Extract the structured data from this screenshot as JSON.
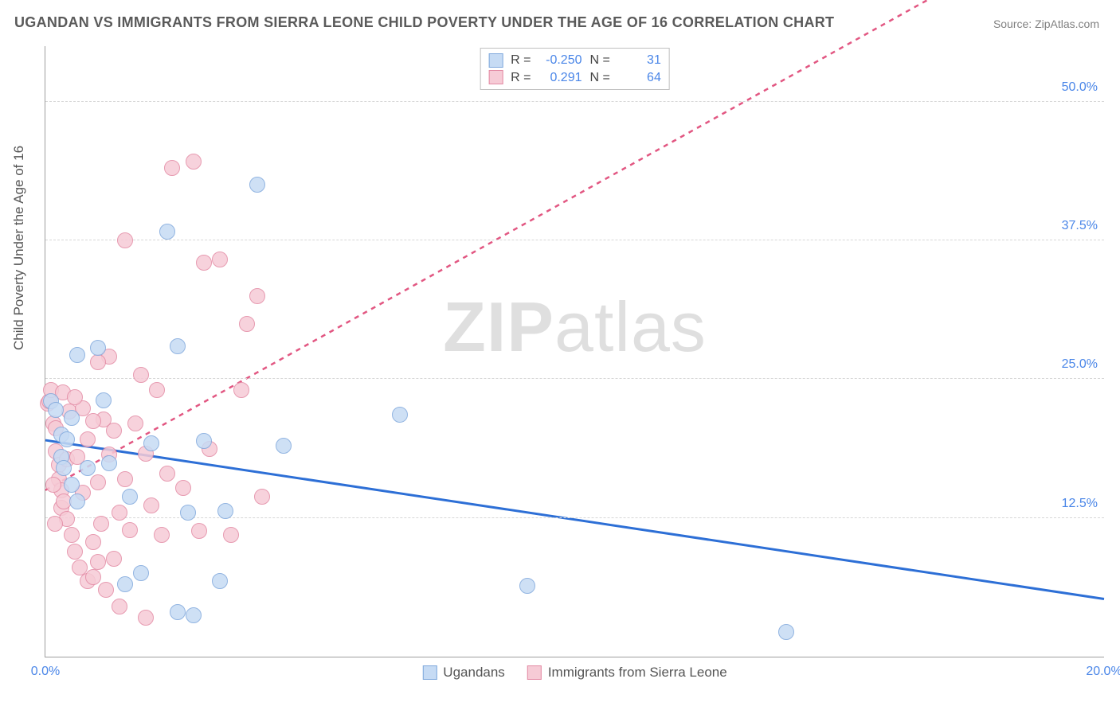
{
  "title": "UGANDAN VS IMMIGRANTS FROM SIERRA LEONE CHILD POVERTY UNDER THE AGE OF 16 CORRELATION CHART",
  "source": "Source: ZipAtlas.com",
  "watermark_left": "ZIP",
  "watermark_right": "atlas",
  "ylabel": "Child Poverty Under the Age of 16",
  "chart": {
    "type": "scatter",
    "xlim": [
      0,
      20
    ],
    "ylim": [
      0,
      55
    ],
    "x_ticks": [
      0,
      20
    ],
    "x_tick_labels": [
      "0.0%",
      "20.0%"
    ],
    "y_ticks": [
      12.5,
      25.0,
      37.5,
      50.0
    ],
    "y_tick_labels": [
      "12.5%",
      "25.0%",
      "37.5%",
      "50.0%"
    ],
    "grid_color": "#d7d7d7",
    "axis_color": "#9e9e9e",
    "background_color": "#ffffff",
    "marker_radius": 10,
    "series": [
      {
        "name": "Ugandans",
        "fill": "#c6dbf4",
        "stroke": "#7fa8dc",
        "trend_color": "#2d6fd6",
        "trend_width": 3,
        "trend_dash": "none",
        "trend": {
          "x1": 0,
          "y1": 19.5,
          "x2": 20,
          "y2": 5.2
        },
        "R": "-0.250",
        "N": "31",
        "points": [
          [
            0.1,
            23.0
          ],
          [
            0.2,
            22.2
          ],
          [
            0.3,
            20.0
          ],
          [
            0.3,
            18.0
          ],
          [
            0.35,
            17.0
          ],
          [
            0.4,
            19.6
          ],
          [
            0.5,
            21.5
          ],
          [
            0.5,
            15.5
          ],
          [
            0.6,
            14.0
          ],
          [
            0.6,
            27.2
          ],
          [
            0.8,
            17.0
          ],
          [
            1.0,
            27.8
          ],
          [
            1.1,
            23.1
          ],
          [
            1.2,
            17.4
          ],
          [
            1.5,
            6.5
          ],
          [
            1.6,
            14.4
          ],
          [
            1.8,
            7.5
          ],
          [
            2.0,
            19.2
          ],
          [
            2.3,
            38.3
          ],
          [
            2.5,
            28.0
          ],
          [
            2.5,
            4.0
          ],
          [
            2.7,
            13.0
          ],
          [
            3.0,
            19.4
          ],
          [
            3.3,
            6.8
          ],
          [
            3.4,
            13.1
          ],
          [
            4.0,
            42.5
          ],
          [
            4.5,
            19.0
          ],
          [
            6.7,
            21.8
          ],
          [
            9.1,
            6.4
          ],
          [
            14.0,
            2.2
          ],
          [
            2.8,
            3.7
          ]
        ]
      },
      {
        "name": "Immigrants from Sierra Leone",
        "fill": "#f6cbd6",
        "stroke": "#e38aa4",
        "trend_color": "#e25782",
        "trend_width": 2.5,
        "trend_dash": "6 6",
        "trend": {
          "x1": 0,
          "y1": 15.0,
          "x2": 20,
          "y2": 68.0
        },
        "R": "0.291",
        "N": "64",
        "points": [
          [
            0.05,
            22.8
          ],
          [
            0.08,
            23.0
          ],
          [
            0.1,
            24.0
          ],
          [
            0.15,
            21.0
          ],
          [
            0.2,
            18.5
          ],
          [
            0.2,
            20.6
          ],
          [
            0.25,
            17.3
          ],
          [
            0.25,
            16.0
          ],
          [
            0.3,
            15.0
          ],
          [
            0.3,
            13.4
          ],
          [
            0.35,
            14.0
          ],
          [
            0.4,
            12.4
          ],
          [
            0.4,
            17.8
          ],
          [
            0.45,
            22.1
          ],
          [
            0.5,
            11.0
          ],
          [
            0.55,
            9.5
          ],
          [
            0.6,
            18.0
          ],
          [
            0.65,
            8.0
          ],
          [
            0.7,
            22.4
          ],
          [
            0.7,
            14.8
          ],
          [
            0.8,
            6.8
          ],
          [
            0.8,
            19.6
          ],
          [
            0.9,
            7.2
          ],
          [
            0.9,
            10.3
          ],
          [
            1.0,
            15.7
          ],
          [
            1.0,
            8.5
          ],
          [
            1.05,
            12.0
          ],
          [
            1.1,
            21.4
          ],
          [
            1.15,
            6.0
          ],
          [
            1.2,
            18.2
          ],
          [
            1.2,
            27.0
          ],
          [
            1.3,
            20.4
          ],
          [
            1.4,
            13.0
          ],
          [
            1.4,
            4.5
          ],
          [
            1.5,
            37.5
          ],
          [
            1.5,
            16.0
          ],
          [
            1.6,
            11.4
          ],
          [
            1.7,
            21.0
          ],
          [
            1.8,
            25.4
          ],
          [
            1.9,
            18.3
          ],
          [
            1.9,
            3.5
          ],
          [
            2.0,
            13.6
          ],
          [
            2.1,
            24.0
          ],
          [
            2.2,
            11.0
          ],
          [
            2.3,
            16.5
          ],
          [
            2.4,
            44.0
          ],
          [
            2.6,
            15.2
          ],
          [
            2.8,
            44.6
          ],
          [
            2.9,
            11.3
          ],
          [
            3.0,
            35.5
          ],
          [
            3.1,
            18.7
          ],
          [
            3.3,
            35.8
          ],
          [
            3.5,
            11.0
          ],
          [
            3.7,
            24.0
          ],
          [
            3.8,
            30.0
          ],
          [
            4.0,
            32.5
          ],
          [
            4.1,
            14.4
          ],
          [
            1.0,
            26.5
          ],
          [
            0.33,
            23.8
          ],
          [
            0.55,
            23.4
          ],
          [
            0.15,
            15.5
          ],
          [
            0.9,
            21.2
          ],
          [
            1.3,
            8.8
          ],
          [
            0.18,
            12.0
          ]
        ]
      }
    ]
  },
  "legend_bottom": [
    {
      "label": "Ugandans",
      "fill": "#c6dbf4",
      "stroke": "#7fa8dc"
    },
    {
      "label": "Immigrants from Sierra Leone",
      "fill": "#f6cbd6",
      "stroke": "#e38aa4"
    }
  ],
  "stats_labels": {
    "R": "R =",
    "N": "N ="
  }
}
